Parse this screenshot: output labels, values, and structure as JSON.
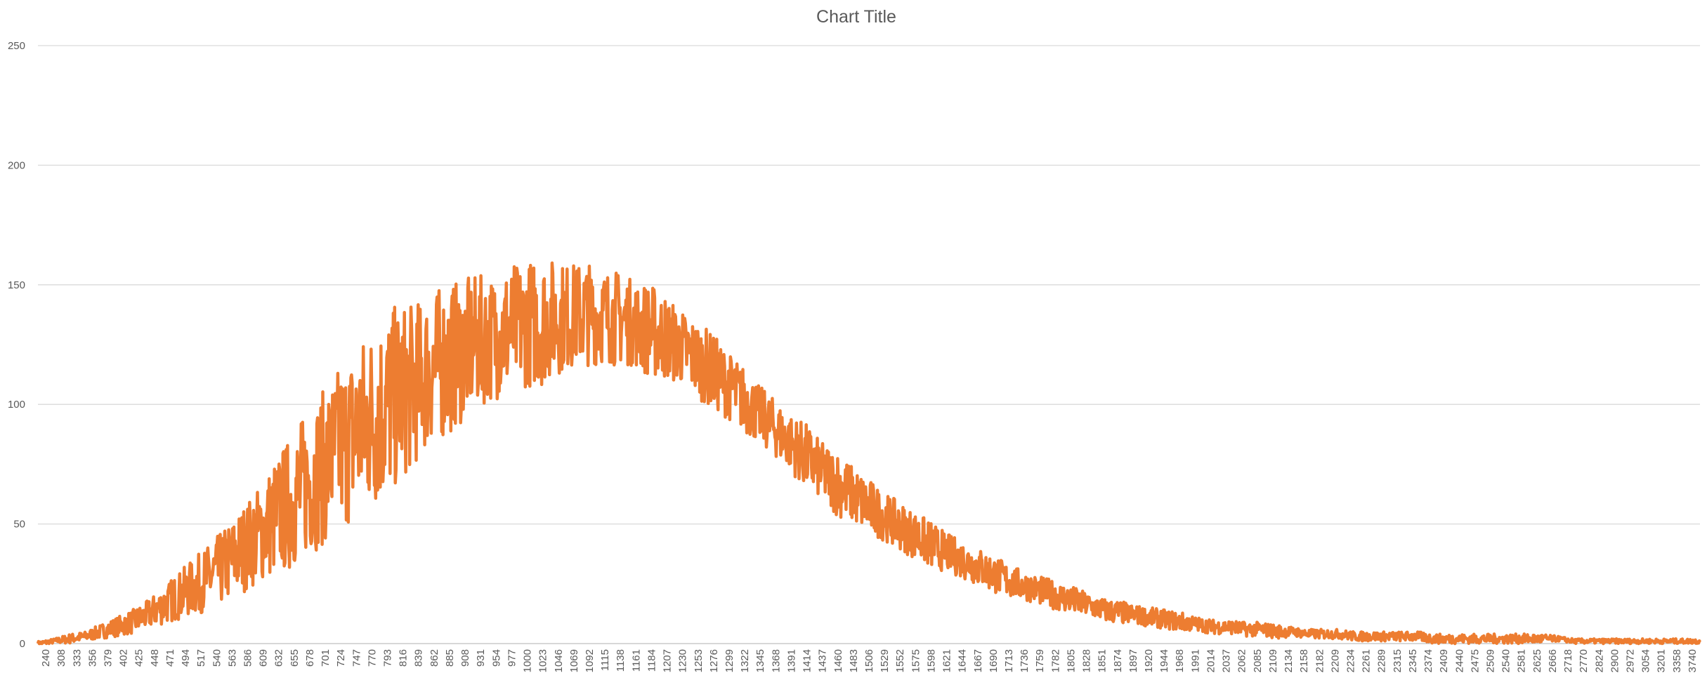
{
  "chart_data": {
    "type": "line",
    "title": "Chart Title",
    "xlabel": "",
    "ylabel": "",
    "ylim": [
      0,
      250
    ],
    "yticks": [
      0,
      50,
      100,
      150,
      200,
      250
    ],
    "grid": true,
    "legend": "none",
    "series_color": "#ed7d31",
    "x_tick_labels": [
      "240",
      "308",
      "333",
      "356",
      "379",
      "402",
      "425",
      "448",
      "471",
      "494",
      "517",
      "540",
      "563",
      "586",
      "609",
      "632",
      "655",
      "678",
      "701",
      "724",
      "747",
      "770",
      "793",
      "816",
      "839",
      "862",
      "885",
      "908",
      "931",
      "954",
      "977",
      "1000",
      "1023",
      "1046",
      "1069",
      "1092",
      "1115",
      "1138",
      "1161",
      "1184",
      "1207",
      "1230",
      "1253",
      "1276",
      "1299",
      "1322",
      "1345",
      "1368",
      "1391",
      "1414",
      "1437",
      "1460",
      "1483",
      "1506",
      "1529",
      "1552",
      "1575",
      "1598",
      "1621",
      "1644",
      "1667",
      "1690",
      "1713",
      "1736",
      "1759",
      "1782",
      "1805",
      "1828",
      "1851",
      "1874",
      "1897",
      "1920",
      "1944",
      "1968",
      "1991",
      "2014",
      "2037",
      "2062",
      "2085",
      "2109",
      "2134",
      "2158",
      "2182",
      "2209",
      "2234",
      "2261",
      "2289",
      "2315",
      "2345",
      "2374",
      "2409",
      "2440",
      "2475",
      "2509",
      "2540",
      "2581",
      "2625",
      "2666",
      "2718",
      "2770",
      "2824",
      "2900",
      "2972",
      "3054",
      "3201",
      "3358",
      "3740"
    ],
    "series": [
      {
        "values": [
          0,
          1,
          2,
          3,
          5,
          7,
          9,
          12,
          16,
          20,
          24,
          28,
          33,
          39,
          45,
          52,
          58,
          66,
          72,
          80,
          86,
          93,
          98,
          104,
          108,
          115,
          118,
          122,
          126,
          128,
          131,
          133,
          135,
          136,
          137,
          138,
          137,
          136,
          134,
          131,
          128,
          124,
          119,
          114,
          108,
          102,
          96,
          90,
          84,
          78,
          72,
          67,
          62,
          57,
          53,
          49,
          45,
          41,
          38,
          35,
          32,
          29,
          26,
          24,
          22,
          20,
          18,
          16,
          14,
          13,
          12,
          11,
          10,
          9,
          8,
          7,
          7,
          6,
          6,
          5,
          5,
          4,
          4,
          4,
          3,
          3,
          3,
          3,
          3,
          2,
          2,
          2,
          2,
          2,
          2,
          2,
          2,
          2,
          1,
          1,
          1,
          1,
          1,
          1,
          1,
          1,
          1
        ],
        "spread": [
          1,
          1,
          2,
          2,
          3,
          4,
          5,
          6,
          8,
          10,
          12,
          14,
          16,
          18,
          20,
          24,
          28,
          30,
          32,
          34,
          36,
          38,
          40,
          38,
          34,
          32,
          32,
          30,
          28,
          26,
          28,
          26,
          28,
          24,
          22,
          22,
          20,
          20,
          18,
          20,
          18,
          16,
          16,
          16,
          14,
          14,
          12,
          12,
          12,
          14,
          12,
          14,
          12,
          12,
          10,
          10,
          10,
          10,
          8,
          8,
          8,
          8,
          7,
          6,
          6,
          6,
          6,
          5,
          5,
          5,
          4,
          4,
          4,
          4,
          3,
          3,
          3,
          3,
          3,
          3,
          2,
          2,
          2,
          2,
          2,
          2,
          2,
          2,
          2,
          2,
          2,
          2,
          2,
          2,
          2,
          2,
          2,
          1,
          1,
          1,
          1,
          1,
          1,
          1,
          1,
          1,
          1
        ]
      }
    ]
  }
}
